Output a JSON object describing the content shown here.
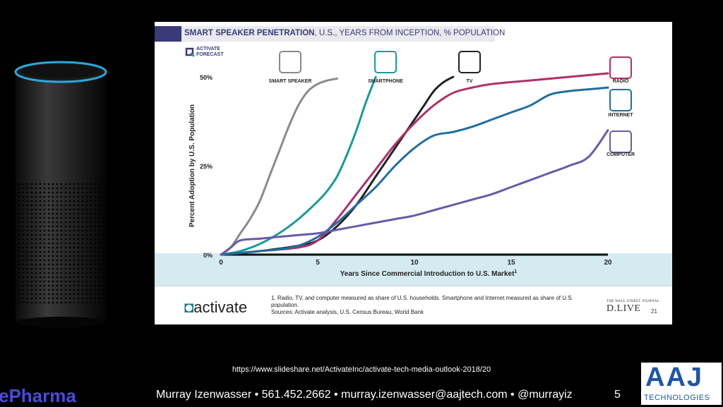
{
  "slide": {
    "title_bold": "SMART SPEAKER PENETRATION",
    "title_rest": ", U.S., YEARS FROM INCEPTION, % POPULATION",
    "forecast_badge": [
      "ACTIVATE",
      "FORECAST"
    ],
    "footnote_line1": "1. Radio, TV, and computer measured as share of U.S. households. Smartphone and Internet measured as share of U.S. population.",
    "footnote_line2": "Sources: Activate analysis, U.S. Census Bureau, World Bank",
    "footer_logo": "activate",
    "wsj_small": "THE WALL STREET JOURNAL",
    "wsj_big": "D.LIVE",
    "page_number": "21"
  },
  "chart_data": {
    "type": "line",
    "xlabel": "Years Since Commercial Introduction to U.S. Market",
    "xlabel_superscript": "1",
    "ylabel": "Percent Adoption by U.S. Population",
    "xlim": [
      0,
      20
    ],
    "ylim": [
      0,
      50
    ],
    "x_ticks": [
      0,
      5,
      10,
      15,
      20
    ],
    "y_ticks": [
      {
        "value": 0,
        "label": "0%"
      },
      {
        "value": 25,
        "label": "25%"
      },
      {
        "value": 50,
        "label": "50%"
      }
    ],
    "series": [
      {
        "name": "SMART SPEAKER",
        "color": "#8a8a8a",
        "icon": "smart-speaker-icon",
        "points": [
          [
            0,
            0
          ],
          [
            0.5,
            2
          ],
          [
            1,
            6
          ],
          [
            1.5,
            10
          ],
          [
            2,
            15
          ],
          [
            2.5,
            22
          ],
          [
            3,
            29
          ],
          [
            3.5,
            36
          ],
          [
            4,
            42
          ],
          [
            4.5,
            46
          ],
          [
            5,
            48
          ],
          [
            5.5,
            49
          ],
          [
            6,
            49.5
          ]
        ]
      },
      {
        "name": "SMARTPHONE",
        "color": "#1a9a9a",
        "icon": "smartphone-icon",
        "points": [
          [
            0,
            0
          ],
          [
            1,
            1
          ],
          [
            2,
            3
          ],
          [
            3,
            6
          ],
          [
            4,
            10
          ],
          [
            5,
            15
          ],
          [
            5.5,
            18
          ],
          [
            6,
            22
          ],
          [
            6.5,
            28
          ],
          [
            7,
            35
          ],
          [
            7.5,
            43
          ],
          [
            8,
            50
          ]
        ]
      },
      {
        "name": "TV",
        "color": "#222222",
        "icon": "tv-icon",
        "points": [
          [
            0,
            0
          ],
          [
            2,
            1
          ],
          [
            4,
            2.5
          ],
          [
            5,
            4
          ],
          [
            6,
            8
          ],
          [
            7,
            14
          ],
          [
            8,
            22
          ],
          [
            9,
            30
          ],
          [
            10,
            38
          ],
          [
            10.5,
            42
          ],
          [
            11,
            46
          ],
          [
            11.5,
            48.5
          ],
          [
            12,
            50
          ]
        ]
      },
      {
        "name": "RADIO",
        "color": "#b0306a",
        "icon": "radio-icon",
        "points": [
          [
            0,
            0
          ],
          [
            2,
            1
          ],
          [
            4,
            2
          ],
          [
            5,
            4
          ],
          [
            6,
            10
          ],
          [
            7,
            17
          ],
          [
            8,
            24
          ],
          [
            9,
            31
          ],
          [
            10,
            37
          ],
          [
            11,
            42
          ],
          [
            12,
            45.5
          ],
          [
            13,
            47
          ],
          [
            14,
            48
          ],
          [
            16,
            49
          ],
          [
            18,
            50
          ],
          [
            20,
            51
          ]
        ]
      },
      {
        "name": "INTERNET",
        "color": "#1f6f9f",
        "icon": "globe-icon",
        "points": [
          [
            0,
            0
          ],
          [
            2,
            1
          ],
          [
            3,
            1.5
          ],
          [
            4,
            2.5
          ],
          [
            5,
            5
          ],
          [
            6,
            9
          ],
          [
            7,
            14
          ],
          [
            8,
            19
          ],
          [
            9,
            25
          ],
          [
            10,
            30
          ],
          [
            11,
            33.5
          ],
          [
            12,
            34.5
          ],
          [
            13,
            36
          ],
          [
            14,
            38
          ],
          [
            15,
            40
          ],
          [
            16,
            42
          ],
          [
            17,
            45
          ],
          [
            18,
            46
          ],
          [
            19,
            46.5
          ],
          [
            20,
            47
          ]
        ]
      },
      {
        "name": "COMPUTER",
        "color": "#6a5aa8",
        "icon": "laptop-icon",
        "points": [
          [
            0,
            0
          ],
          [
            0.5,
            2
          ],
          [
            1,
            4
          ],
          [
            2,
            4.5
          ],
          [
            3,
            5
          ],
          [
            4,
            5.5
          ],
          [
            5,
            6
          ],
          [
            6,
            7
          ],
          [
            7,
            8
          ],
          [
            8,
            9
          ],
          [
            9,
            10
          ],
          [
            10,
            11
          ],
          [
            11,
            12.5
          ],
          [
            12,
            14
          ],
          [
            13,
            15.5
          ],
          [
            14,
            17
          ],
          [
            15,
            19
          ],
          [
            16,
            21
          ],
          [
            17,
            23
          ],
          [
            18,
            25
          ],
          [
            19,
            27.5
          ],
          [
            20,
            35
          ]
        ]
      }
    ]
  },
  "footer": {
    "source_url": "https://www.slideshare.net/ActivateInc/activate-tech-media-outlook-2018/20",
    "contact": "Murray Izenwasser • 561.452.2662 • murray.izenwasser@aajtech.com •  @murrayiz",
    "slide_number": "5",
    "left_brand": "ePharma",
    "aaj_letters": "AAJ",
    "aaj_sub": "TECHNOLOGIES"
  }
}
